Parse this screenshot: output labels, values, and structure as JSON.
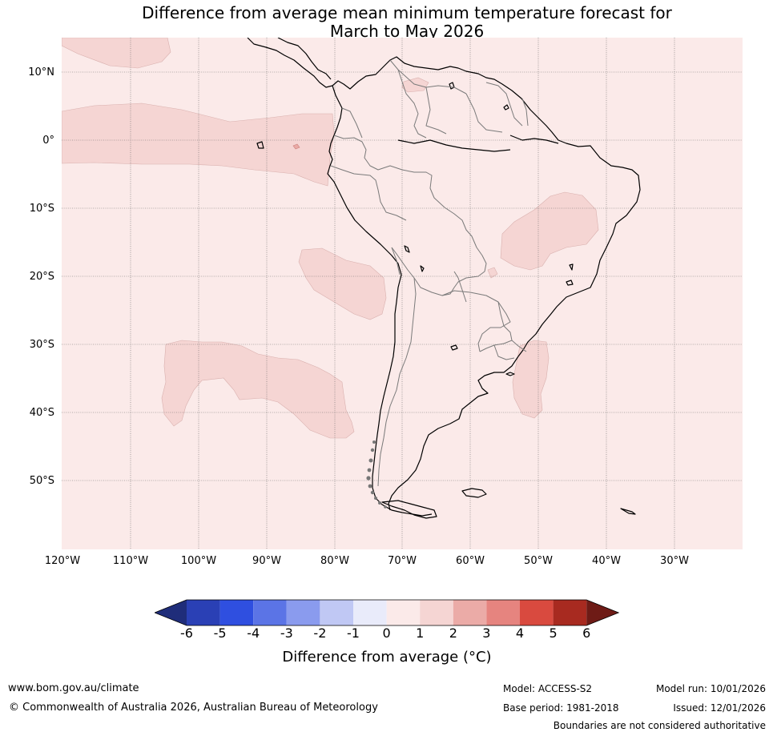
{
  "title": {
    "line1": "Difference from average mean minimum temperature forecast for",
    "line2": "March to May 2026"
  },
  "map": {
    "ocean_color": "#fbeae9",
    "anomaly_1_2_color": "#f5d5d3",
    "lat_labels": [
      "10°N",
      "0°",
      "10°S",
      "20°S",
      "30°S",
      "40°S",
      "50°S"
    ],
    "lon_labels": [
      "120°W",
      "110°W",
      "100°W",
      "90°W",
      "80°W",
      "70°W",
      "60°W",
      "50°W",
      "40°W",
      "30°W"
    ]
  },
  "colorbar": {
    "ticks": [
      "-6",
      "-5",
      "-4",
      "-3",
      "-2",
      "-1",
      "0",
      "1",
      "2",
      "3",
      "4",
      "5",
      "6"
    ],
    "colors": [
      "#1f2d7a",
      "#2a40b5",
      "#2f4fe0",
      "#5b74e6",
      "#8a9bee",
      "#c0c8f4",
      "#e9ebfa",
      "#fbeae9",
      "#f5d5d3",
      "#ebaba7",
      "#e6847f",
      "#d94a3f",
      "#a82a20",
      "#6e1b16"
    ],
    "label": "Difference from average (°C)"
  },
  "footer": {
    "website": "www.bom.gov.au/climate",
    "copyright": "© Commonwealth of Australia 2026, Australian Bureau of Meteorology",
    "model": "Model: ACCESS-S2",
    "base_period": "Base period: 1981-2018",
    "model_run": "Model run: 10/01/2026",
    "issued": "Issued: 12/01/2026",
    "disclaimer": "Boundaries are not considered authoritative"
  }
}
